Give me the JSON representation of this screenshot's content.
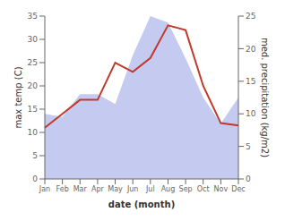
{
  "chart_data": {
    "type": "line",
    "xlabel": "date (month)",
    "ylabel": "max temp (C)",
    "y2label": "med. precipitation (kg/m2)",
    "categories": [
      "Jan",
      "Feb",
      "Mar",
      "Apr",
      "May",
      "Jun",
      "Jul",
      "Aug",
      "Sep",
      "Oct",
      "Nov",
      "Dec"
    ],
    "series": [
      {
        "type": "area",
        "axis": "y2",
        "color": "#c5caf0",
        "values": [
          10,
          9.5,
          13,
          13,
          11.5,
          19,
          25,
          24,
          18.5,
          12.5,
          8.5,
          12.5
        ]
      },
      {
        "type": "line",
        "color": "#c0392b",
        "values": [
          11,
          14,
          17,
          17,
          25,
          23,
          26,
          33,
          32,
          20,
          12,
          11.5
        ]
      }
    ],
    "ylim": [
      0,
      35
    ],
    "yticks": [
      0,
      5,
      10,
      15,
      20,
      25,
      30,
      35
    ],
    "y2lim": [
      0,
      25
    ],
    "y2ticks": [
      0,
      5,
      10,
      15,
      20,
      25
    ],
    "grid": false
  }
}
